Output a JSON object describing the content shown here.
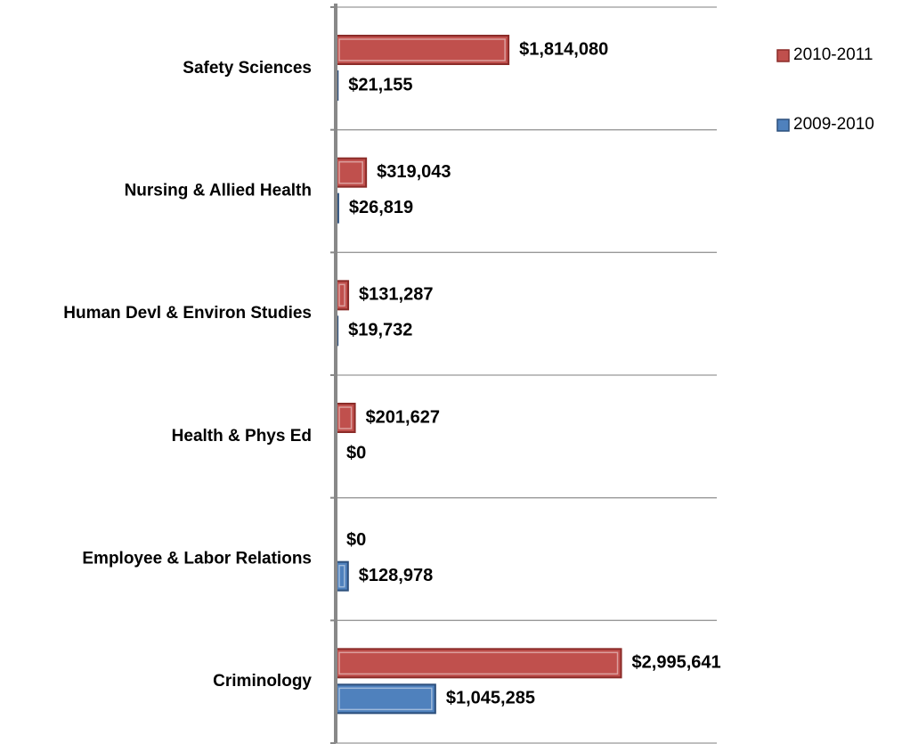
{
  "chart_data": {
    "type": "bar",
    "orientation": "horizontal",
    "categories": [
      "Safety Sciences",
      "Nursing & Allied Health",
      "Human Devl & Environ Studies",
      "Health & Phys Ed",
      "Employee & Labor Relations",
      "Criminology"
    ],
    "series": [
      {
        "name": "2010-2011",
        "color": "#c0504d",
        "values": [
          1814080,
          319043,
          131287,
          201627,
          0,
          2995641
        ],
        "value_labels": [
          "$1,814,080",
          "$319,043",
          "$131,287",
          "$201,627",
          "$0",
          "$2,995,641"
        ]
      },
      {
        "name": "2009-2010",
        "color": "#4f81bd",
        "values": [
          21155,
          26819,
          19732,
          0,
          128978,
          1045285
        ],
        "value_labels": [
          "$21,155",
          "$26,819",
          "$19,732",
          "$0",
          "$128,978",
          "$1,045,285"
        ]
      }
    ],
    "xlim": [
      0,
      4000000
    ],
    "legend": "right"
  }
}
